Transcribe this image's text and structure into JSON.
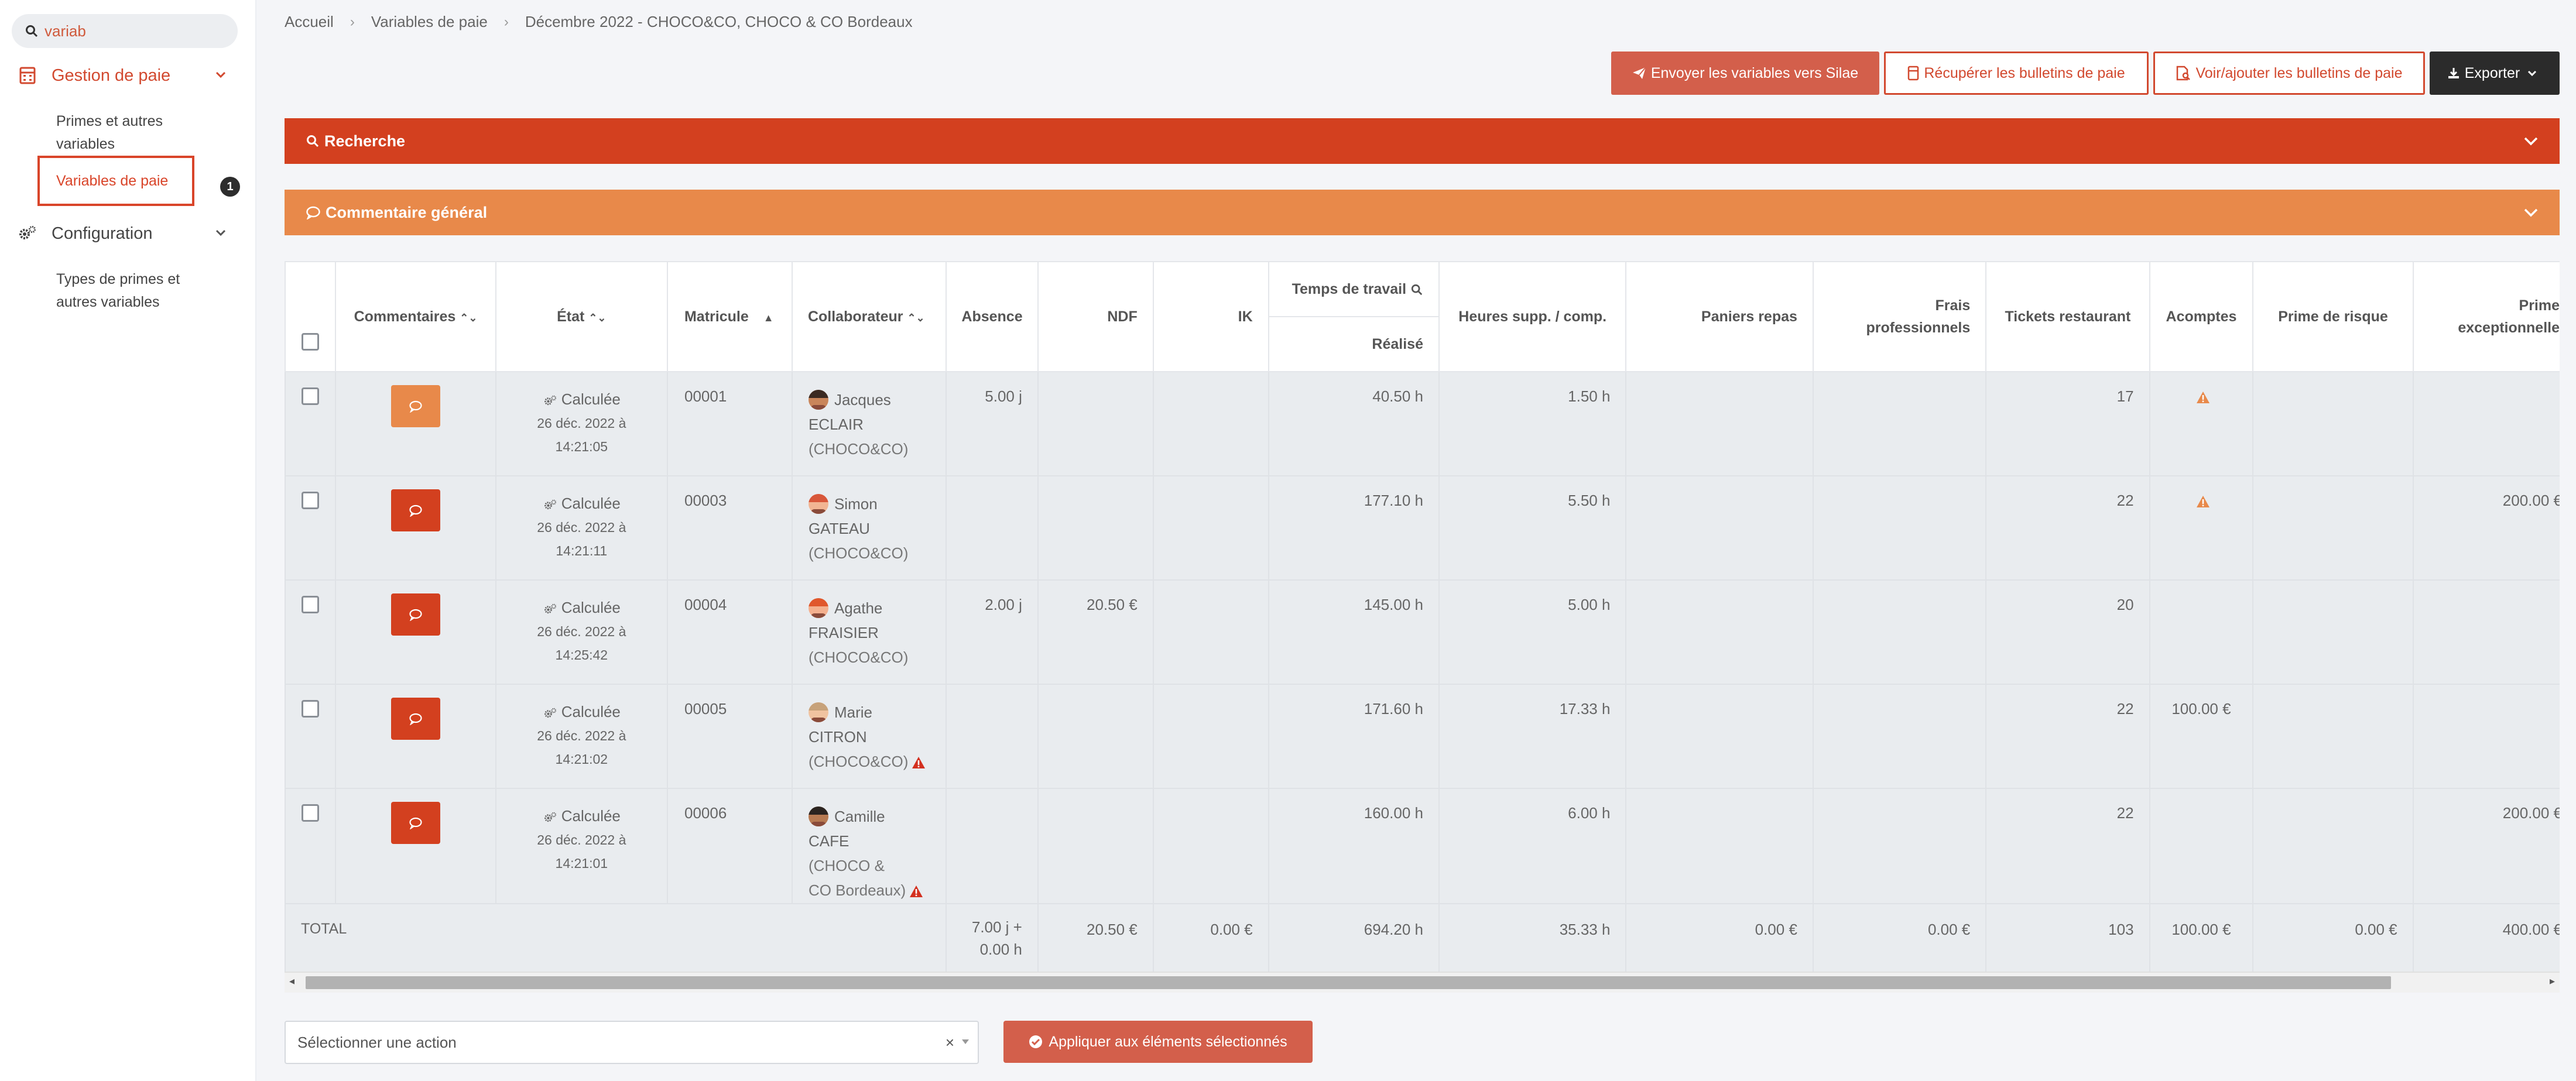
{
  "sidebar": {
    "search_value": "variab",
    "groups": [
      {
        "label": "Gestion de paie",
        "icon": "calculator-icon"
      },
      {
        "label": "Configuration",
        "icon": "cogs-icon"
      }
    ],
    "gestion_items": [
      "Primes et autres",
      "variables",
      "Variables de paie"
    ],
    "config_items": [
      "Types de primes et",
      "autres variables"
    ],
    "badge": "1"
  },
  "breadcrumb": [
    "Accueil",
    "Variables de paie",
    "Décembre 2022 - CHOCO&CO, CHOCO & CO Bordeaux"
  ],
  "toolbar": {
    "send": "Envoyer les variables vers Silae",
    "fetch": "Récupérer les bulletins de paie",
    "view": "Voir/ajouter les bulletins de paie",
    "export": "Exporter"
  },
  "panels": {
    "search": "Recherche",
    "comment": "Commentaire général"
  },
  "columns": {
    "comments": "Commentaires",
    "state": "État",
    "matricule": "Matricule",
    "collaborator": "Collaborateur",
    "absence": "Absence",
    "ndf": "NDF",
    "ik": "IK",
    "work_time": "Temps de travail",
    "realise": "Réalisé",
    "overtime": "Heures supp. / comp.",
    "meals": "Paniers repas",
    "fees_1": "Frais",
    "fees_2": "professionnels",
    "tickets": "Tickets restaurant",
    "advances": "Acomptes",
    "risk": "Prime de risque",
    "bonus_1": "Prime",
    "bonus_2": "exceptionnelle"
  },
  "rows": [
    {
      "comment_color": "#e8894a",
      "state": "Calculée",
      "date1": "26 déc. 2022 à",
      "date2": "14:21:05",
      "matricule": "00001",
      "first": "Jacques",
      "last": "ECLAIR",
      "company": "(CHOCO&CO)",
      "company2": "",
      "alert": false,
      "absence": "5.00 j",
      "ndf": "",
      "ik": "",
      "realise": "40.50 h",
      "overtime": "1.50 h",
      "meals": "",
      "fees": "",
      "tickets": "17",
      "advances": "",
      "advance_warn": true,
      "risk": "",
      "bonus": ""
    },
    {
      "comment_color": "#d3401f",
      "state": "Calculée",
      "date1": "26 déc. 2022 à",
      "date2": "14:21:11",
      "matricule": "00003",
      "first": "Simon",
      "last": "GATEAU",
      "company": "(CHOCO&CO)",
      "company2": "",
      "alert": false,
      "absence": "",
      "ndf": "",
      "ik": "",
      "realise": "177.10 h",
      "overtime": "5.50 h",
      "meals": "",
      "fees": "",
      "tickets": "22",
      "advances": "",
      "advance_warn": true,
      "risk": "",
      "bonus": "200.00 €"
    },
    {
      "comment_color": "#d3401f",
      "state": "Calculée",
      "date1": "26 déc. 2022 à",
      "date2": "14:25:42",
      "matricule": "00004",
      "first": "Agathe",
      "last": "FRAISIER",
      "company": "(CHOCO&CO)",
      "company2": "",
      "alert": false,
      "absence": "2.00 j",
      "ndf": "20.50 €",
      "ik": "",
      "realise": "145.00 h",
      "overtime": "5.00 h",
      "meals": "",
      "fees": "",
      "tickets": "20",
      "advances": "",
      "advance_warn": false,
      "risk": "",
      "bonus": ""
    },
    {
      "comment_color": "#d3401f",
      "state": "Calculée",
      "date1": "26 déc. 2022 à",
      "date2": "14:21:02",
      "matricule": "00005",
      "first": "Marie",
      "last": "CITRON",
      "company": "(CHOCO&CO)",
      "company2": "",
      "alert": true,
      "absence": "",
      "ndf": "",
      "ik": "",
      "realise": "171.60 h",
      "overtime": "17.33 h",
      "meals": "",
      "fees": "",
      "tickets": "22",
      "advances": "100.00 €",
      "advance_warn": false,
      "risk": "",
      "bonus": ""
    },
    {
      "comment_color": "#d3401f",
      "state": "Calculée",
      "date1": "26 déc. 2022 à",
      "date2": "14:21:01",
      "matricule": "00006",
      "first": "Camille",
      "last": "CAFE",
      "company": "(CHOCO &",
      "company2": "CO Bordeaux)",
      "alert": true,
      "absence": "",
      "ndf": "",
      "ik": "",
      "realise": "160.00 h",
      "overtime": "6.00 h",
      "meals": "",
      "fees": "",
      "tickets": "22",
      "advances": "",
      "advance_warn": false,
      "risk": "",
      "bonus": "200.00 €"
    }
  ],
  "total": {
    "label": "TOTAL",
    "absence_1": "7.00 j +",
    "absence_2": "0.00 h",
    "ndf": "20.50 €",
    "ik": "0.00 €",
    "realise": "694.20 h",
    "overtime": "35.33 h",
    "meals": "0.00 €",
    "fees": "0.00 €",
    "tickets": "103",
    "advances": "100.00 €",
    "risk": "0.00 €",
    "bonus": "400.00 €"
  },
  "footer": {
    "action_placeholder": "Sélectionner une action",
    "clear": "×",
    "apply": "Appliquer aux éléments sélectionnés"
  },
  "colors": {
    "accent": "#d3401f",
    "comment_bar": "#e8894a",
    "button": "#d35f4b",
    "dark": "#2b2b2b"
  }
}
